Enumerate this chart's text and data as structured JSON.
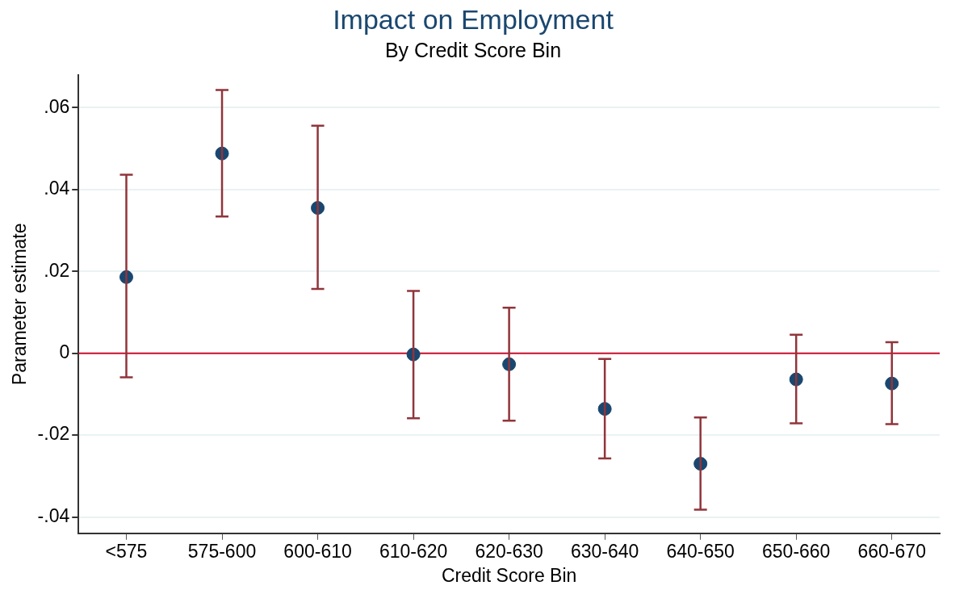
{
  "chart_data": {
    "type": "scatter",
    "title": "Impact on Employment",
    "subtitle": "By Credit Score Bin",
    "xlabel": "Credit Score Bin",
    "ylabel": "Parameter estimate",
    "categories": [
      "<575",
      "575-600",
      "600-610",
      "610-620",
      "620-630",
      "630-640",
      "640-650",
      "650-660",
      "660-670"
    ],
    "series": [
      {
        "color": "#1a476f",
        "values": [
          0.0186,
          0.0488,
          0.0355,
          -0.0003,
          -0.0027,
          -0.0136,
          -0.027,
          -0.0064,
          -0.0074
        ],
        "errors": [
          [
            -0.0059,
            0.0436
          ],
          [
            0.0334,
            0.0643
          ],
          [
            0.0157,
            0.0556
          ],
          [
            -0.0159,
            0.0152
          ],
          [
            -0.0165,
            0.0111
          ],
          [
            -0.0257,
            -0.0014
          ],
          [
            -0.0382,
            -0.0157
          ],
          [
            -0.0171,
            0.0045
          ],
          [
            -0.0173,
            0.0027
          ]
        ]
      }
    ],
    "ylim": [
      -0.044,
      0.068
    ],
    "yticks": [
      {
        "value": -0.04,
        "label": "-.04"
      },
      {
        "value": -0.02,
        "label": "-.02"
      },
      0,
      {
        "value": 0.02,
        "label": ".02"
      },
      {
        "value": 0.04,
        "label": ".04"
      },
      {
        "value": 0.06,
        "label": ".06"
      }
    ],
    "ref_lines": [
      {
        "axis": "y",
        "value": 0,
        "color": "#c8102e"
      }
    ],
    "grid": "y",
    "legend": false,
    "marker": "circle"
  }
}
